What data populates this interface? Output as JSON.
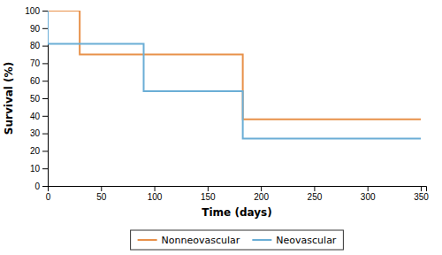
{
  "chart_data": {
    "type": "line",
    "xlabel": "Time (days)",
    "ylabel": "Survival (%)",
    "series": [
      {
        "name": "Nonneovascular",
        "color": "#E8914A",
        "x": [
          0,
          30,
          30,
          183,
          183,
          350
        ],
        "values": [
          100,
          100,
          75,
          75,
          38,
          38
        ]
      },
      {
        "name": "Neovascular",
        "color": "#6BAED6",
        "x": [
          0,
          0,
          90,
          90,
          183,
          183,
          350
        ],
        "values": [
          100,
          81,
          81,
          54,
          54,
          27,
          27
        ]
      }
    ],
    "xlim": [
      0,
      355
    ],
    "ylim": [
      0,
      100
    ],
    "xticks": [
      0,
      50,
      100,
      150,
      200,
      250,
      300,
      350
    ],
    "yticks": [
      0,
      10,
      20,
      30,
      40,
      50,
      60,
      70,
      80,
      90,
      100
    ],
    "grid": false,
    "legend": "bottom"
  }
}
